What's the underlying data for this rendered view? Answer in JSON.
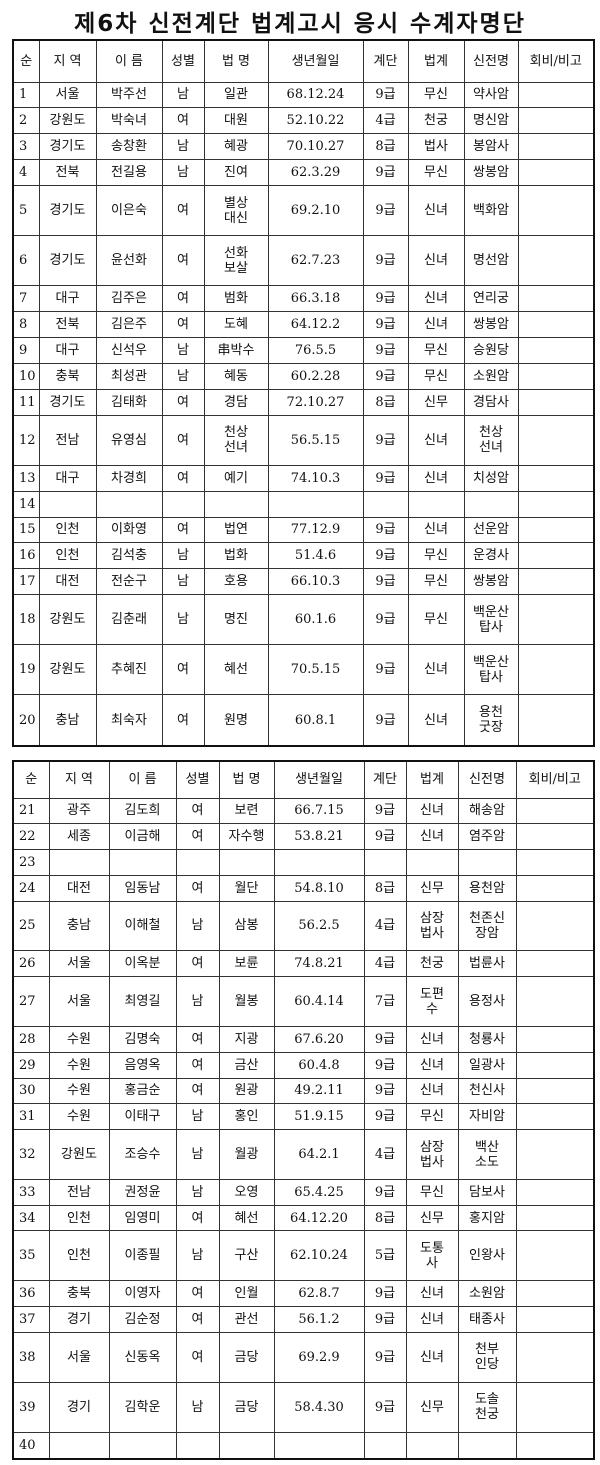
{
  "title": "제6차 신전계단 법계고시 응시 수계자명단",
  "headers": [
    "순",
    "지 역",
    "이  름",
    "성별",
    "법 명",
    "생년월일",
    "계단",
    "법계",
    "신전명",
    "회비/비고"
  ],
  "table1": [
    [
      "1",
      "서울",
      "박주선",
      "남",
      "일관",
      "68.12.24",
      "9급",
      "무신",
      "약사암",
      ""
    ],
    [
      "2",
      "강원도",
      "박숙녀",
      "여",
      "대원",
      "52.10.22",
      "4급",
      "천궁",
      "명신암",
      ""
    ],
    [
      "3",
      "경기도",
      "송창환",
      "남",
      "혜광",
      "70.10.27",
      "8급",
      "법사",
      "봉암사",
      ""
    ],
    [
      "4",
      "전북",
      "전길용",
      "남",
      "진여",
      "62.3.29",
      "9급",
      "무신",
      "쌍봉암",
      ""
    ],
    [
      "5",
      "경기도",
      "이은숙",
      "여",
      "별상\n대신",
      "69.2.10",
      "9급",
      "신녀",
      "백화암",
      ""
    ],
    [
      "6",
      "경기도",
      "윤선화",
      "여",
      "선화\n보살",
      "62.7.23",
      "9급",
      "신녀",
      "명선암",
      ""
    ],
    [
      "7",
      "대구",
      "김주은",
      "여",
      "범화",
      "66.3.18",
      "9급",
      "신녀",
      "연리궁",
      ""
    ],
    [
      "8",
      "전북",
      "김은주",
      "여",
      "도혜",
      "64.12.2",
      "9급",
      "신녀",
      "쌍봉암",
      ""
    ],
    [
      "9",
      "대구",
      "신석우",
      "남",
      "串박수",
      "76.5.5",
      "9급",
      "무신",
      "승원당",
      ""
    ],
    [
      "10",
      "충북",
      "최성관",
      "남",
      "혜동",
      "60.2.28",
      "9급",
      "무신",
      "소원암",
      ""
    ],
    [
      "11",
      "경기도",
      "김태화",
      "여",
      "경담",
      "72.10.27",
      "8급",
      "신무",
      "경담사",
      ""
    ],
    [
      "12",
      "전남",
      "유영심",
      "여",
      "천상\n선녀",
      "56.5.15",
      "9급",
      "신녀",
      "천상\n선녀",
      ""
    ],
    [
      "13",
      "대구",
      "차경희",
      "여",
      "예기",
      "74.10.3",
      "9급",
      "신녀",
      "치성암",
      ""
    ],
    [
      "14",
      "",
      "",
      "",
      "",
      "",
      "",
      "",
      "",
      ""
    ],
    [
      "15",
      "인천",
      "이화영",
      "여",
      "법연",
      "77.12.9",
      "9급",
      "신녀",
      "선운암",
      ""
    ],
    [
      "16",
      "인천",
      "김석충",
      "남",
      "법화",
      "51.4.6",
      "9급",
      "무신",
      "운경사",
      ""
    ],
    [
      "17",
      "대전",
      "전순구",
      "남",
      "호용",
      "66.10.3",
      "9급",
      "무신",
      "쌍봉암",
      ""
    ],
    [
      "18",
      "강원도",
      "김춘래",
      "남",
      "명진",
      "60.1.6",
      "9급",
      "무신",
      "백운산\n탑사",
      ""
    ],
    [
      "19",
      "강원도",
      "추혜진",
      "여",
      "혜선",
      "70.5.15",
      "9급",
      "신녀",
      "백운산\n탑사",
      ""
    ],
    [
      "20",
      "충남",
      "최숙자",
      "여",
      "원명",
      "60.8.1",
      "9급",
      "신녀",
      "용천\n굿장",
      ""
    ]
  ],
  "table2": [
    [
      "21",
      "광주",
      "김도희",
      "여",
      "보련",
      "66.7.15",
      "9급",
      "신녀",
      "해송암",
      ""
    ],
    [
      "22",
      "세종",
      "이금해",
      "여",
      "자수행",
      "53.8.21",
      "9급",
      "신녀",
      "염주암",
      ""
    ],
    [
      "23",
      "",
      "",
      "",
      "",
      "",
      "",
      "",
      "",
      ""
    ],
    [
      "24",
      "대전",
      "임동남",
      "여",
      "월단",
      "54.8.10",
      "8급",
      "신무",
      "용천암",
      ""
    ],
    [
      "25",
      "충남",
      "이해철",
      "남",
      "삼봉",
      "56.2.5",
      "4급",
      "삼장\n법사",
      "천존신\n장암",
      ""
    ],
    [
      "26",
      "서울",
      "이옥분",
      "여",
      "보륜",
      "74.8.21",
      "4급",
      "천궁",
      "법륜사",
      ""
    ],
    [
      "27",
      "서울",
      "최영길",
      "남",
      "월봉",
      "60.4.14",
      "7급",
      "도편\n수",
      "용정사",
      ""
    ],
    [
      "28",
      "수원",
      "김명숙",
      "여",
      "지광",
      "67.6.20",
      "9급",
      "신녀",
      "청룡사",
      ""
    ],
    [
      "29",
      "수원",
      "음영옥",
      "여",
      "금산",
      "60.4.8",
      "9급",
      "신녀",
      "일광사",
      ""
    ],
    [
      "30",
      "수원",
      "홍금순",
      "여",
      "원광",
      "49.2.11",
      "9급",
      "신녀",
      "천신사",
      ""
    ],
    [
      "31",
      "수원",
      "이태구",
      "남",
      "홍인",
      "51.9.15",
      "9급",
      "무신",
      "자비암",
      ""
    ],
    [
      "32",
      "강원도",
      "조승수",
      "남",
      "월광",
      "64.2.1",
      "4급",
      "삼장\n법사",
      "백산\n소도",
      ""
    ],
    [
      "33",
      "전남",
      "권정윤",
      "남",
      "오영",
      "65.4.25",
      "9급",
      "무신",
      "담보사",
      ""
    ],
    [
      "34",
      "인천",
      "임영미",
      "여",
      "혜선",
      "64.12.20",
      "8급",
      "신무",
      "홍지암",
      ""
    ],
    [
      "35",
      "인천",
      "이종필",
      "남",
      "구산",
      "62.10.24",
      "5급",
      "도통\n사",
      "인왕사",
      ""
    ],
    [
      "36",
      "충북",
      "이영자",
      "여",
      "인월",
      "62.8.7",
      "9급",
      "신녀",
      "소원암",
      ""
    ],
    [
      "37",
      "경기",
      "김순정",
      "여",
      "관선",
      "56.1.2",
      "9급",
      "신녀",
      "태종사",
      ""
    ],
    [
      "38",
      "서울",
      "신동옥",
      "여",
      "금당",
      "69.2.9",
      "9급",
      "신녀",
      "천부\n인당",
      ""
    ],
    [
      "39",
      "경기",
      "김학운",
      "남",
      "금당",
      "58.4.30",
      "9급",
      "신무",
      "도솔\n천궁",
      ""
    ],
    [
      "40",
      "",
      "",
      "",
      "",
      "",
      "",
      "",
      "",
      ""
    ]
  ]
}
